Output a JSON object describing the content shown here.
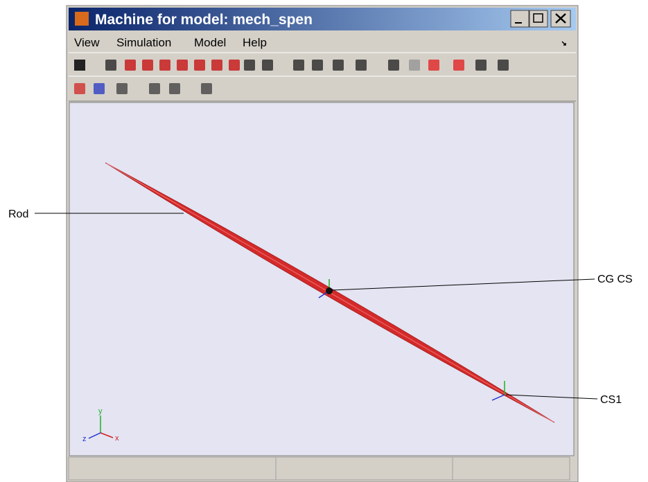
{
  "window": {
    "title": "Machine for model: mech_spen",
    "menu": [
      "View",
      "Simulation",
      "Model",
      "Help"
    ]
  },
  "annotations": [
    {
      "label": "Rod"
    },
    {
      "label": "CG CS"
    },
    {
      "label": "CS1"
    }
  ],
  "triad": {
    "x": "x",
    "y": "y",
    "z": "z"
  }
}
